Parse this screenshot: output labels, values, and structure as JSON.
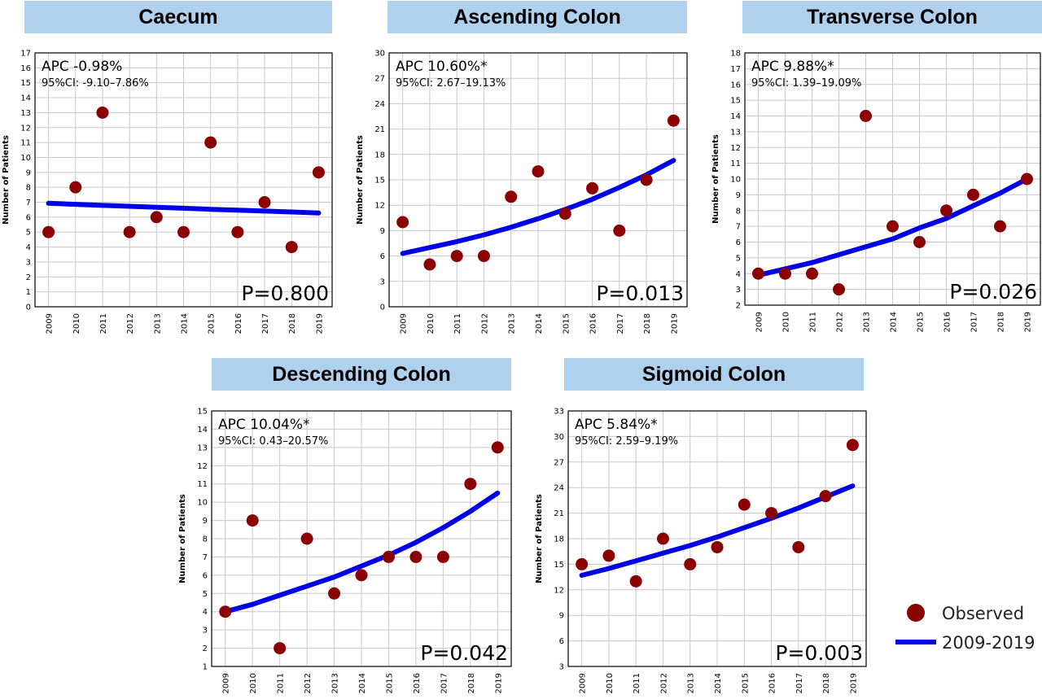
{
  "colors": {
    "observed": "#8b0000",
    "fit": "#0000e6",
    "title_bg": "#b0d1ee",
    "grid": "#c8c8c8"
  },
  "legend": {
    "observed_label": "Observed",
    "fit_label": "2009-2019"
  },
  "chart_data": [
    {
      "type": "scatter",
      "title": "Caecum",
      "ylabel": "Number of Patients",
      "x": [
        2009,
        2010,
        2011,
        2012,
        2013,
        2014,
        2015,
        2016,
        2017,
        2018,
        2019
      ],
      "y_ticks": [
        0,
        1,
        2,
        3,
        4,
        5,
        6,
        7,
        8,
        9,
        10,
        11,
        12,
        13,
        14,
        15,
        16,
        17
      ],
      "ylim": [
        0,
        17
      ],
      "series": [
        {
          "name": "Observed",
          "values": [
            5,
            8,
            13,
            5,
            6,
            5,
            11,
            5,
            7,
            4,
            9
          ]
        },
        {
          "name": "2009-2019",
          "values": [
            6.93,
            6.86,
            6.79,
            6.73,
            6.66,
            6.6,
            6.53,
            6.47,
            6.41,
            6.35,
            6.28
          ]
        }
      ],
      "apc": "APC -0.98%",
      "ci": "95%CI: -9.10–7.86%",
      "p": "P=0.800",
      "grid": true
    },
    {
      "type": "scatter",
      "title": "Ascending Colon",
      "ylabel": "Number of Patients",
      "x": [
        2009,
        2010,
        2011,
        2012,
        2013,
        2014,
        2015,
        2016,
        2017,
        2018,
        2019
      ],
      "y_ticks": [
        0,
        3,
        6,
        9,
        12,
        15,
        18,
        21,
        24,
        27,
        30
      ],
      "ylim": [
        0,
        30
      ],
      "series": [
        {
          "name": "Observed",
          "values": [
            10,
            5,
            6,
            6,
            13,
            16,
            11,
            14,
            9,
            15,
            22
          ]
        },
        {
          "name": "2009-2019",
          "values": [
            6.3,
            7.0,
            7.7,
            8.5,
            9.4,
            10.4,
            11.5,
            12.7,
            14.1,
            15.6,
            17.3
          ]
        }
      ],
      "apc": "APC 10.60%*",
      "ci": "95%CI: 2.67–19.13%",
      "p": "P=0.013",
      "grid": true
    },
    {
      "type": "scatter",
      "title": "Transverse Colon",
      "ylabel": "Number of Patients",
      "x": [
        2009,
        2010,
        2011,
        2012,
        2013,
        2014,
        2015,
        2016,
        2017,
        2018,
        2019
      ],
      "y_ticks": [
        2,
        3,
        4,
        5,
        6,
        7,
        8,
        9,
        10,
        11,
        12,
        13,
        14,
        15,
        16,
        17,
        18
      ],
      "ylim": [
        2,
        18
      ],
      "series": [
        {
          "name": "Observed",
          "values": [
            4,
            4,
            4,
            3,
            14,
            7,
            6,
            8,
            9,
            7,
            10
          ]
        },
        {
          "name": "2009-2019",
          "values": [
            3.9,
            4.3,
            4.7,
            5.2,
            5.7,
            6.2,
            6.9,
            7.5,
            8.3,
            9.1,
            10.0
          ]
        }
      ],
      "apc": "APC 9.88%*",
      "ci": "95%CI: 1.39–19.09%",
      "p": "P=0.026",
      "grid": true
    },
    {
      "type": "scatter",
      "title": "Descending Colon",
      "ylabel": "Number of Patients",
      "x": [
        2009,
        2010,
        2011,
        2012,
        2013,
        2014,
        2015,
        2016,
        2017,
        2018,
        2019
      ],
      "y_ticks": [
        1,
        2,
        3,
        4,
        5,
        6,
        7,
        8,
        9,
        10,
        11,
        12,
        13,
        14,
        15
      ],
      "ylim": [
        1,
        15
      ],
      "series": [
        {
          "name": "Observed",
          "values": [
            4,
            9,
            2,
            8,
            5,
            6,
            7,
            7,
            7,
            11,
            13
          ]
        },
        {
          "name": "2009-2019",
          "values": [
            4.0,
            4.4,
            4.9,
            5.4,
            5.9,
            6.5,
            7.1,
            7.8,
            8.6,
            9.5,
            10.5
          ]
        }
      ],
      "apc": "APC 10.04%*",
      "ci": "95%CI: 0.43–20.57%",
      "p": "P=0.042",
      "grid": true
    },
    {
      "type": "scatter",
      "title": "Sigmoid Colon",
      "ylabel": "Number of Patients",
      "x": [
        2009,
        2010,
        2011,
        2012,
        2013,
        2014,
        2015,
        2016,
        2017,
        2018,
        2019
      ],
      "y_ticks": [
        3,
        6,
        9,
        12,
        15,
        18,
        21,
        24,
        27,
        30,
        33
      ],
      "ylim": [
        3,
        33
      ],
      "series": [
        {
          "name": "Observed",
          "values": [
            15,
            16,
            13,
            18,
            15,
            17,
            22,
            21,
            17,
            23,
            29
          ]
        },
        {
          "name": "2009-2019",
          "values": [
            13.7,
            14.5,
            15.4,
            16.3,
            17.2,
            18.2,
            19.3,
            20.4,
            21.6,
            22.9,
            24.2
          ]
        }
      ],
      "apc": "APC 5.84%*",
      "ci": "95%CI: 2.59–9.19%",
      "p": "P=0.003",
      "grid": true
    }
  ]
}
